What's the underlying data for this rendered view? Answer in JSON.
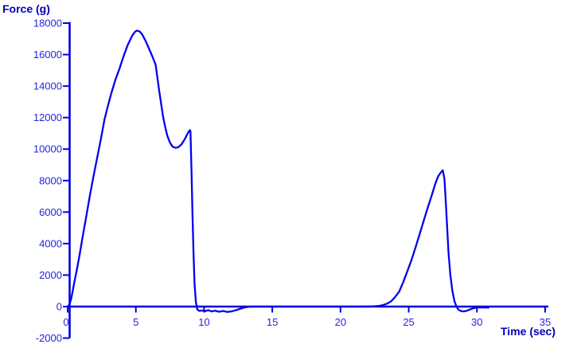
{
  "colors": {
    "background": "#ffffff",
    "curve": "#0202ee",
    "axis": "#0202e0",
    "tick_label": "#2424e2",
    "axis_title": "#0000b6"
  },
  "chart_data": {
    "type": "line",
    "title": "",
    "ylabel": "Force (g)",
    "xlabel": "Time (sec)",
    "xlim": [
      0,
      35
    ],
    "ylim": [
      -2000,
      18000
    ],
    "x_ticks": [
      0,
      5,
      10,
      15,
      20,
      25,
      30,
      35
    ],
    "y_ticks": [
      18000,
      16000,
      14000,
      12000,
      10000,
      8000,
      6000,
      4000,
      2000,
      0,
      -2000
    ],
    "grid": false,
    "legend": null,
    "series": [
      {
        "name": "force",
        "color": "#0202ee",
        "points": [
          [
            0,
            0
          ],
          [
            0.15,
            150
          ],
          [
            0.3,
            650
          ],
          [
            0.5,
            1600
          ],
          [
            0.7,
            2450
          ],
          [
            0.9,
            3400
          ],
          [
            1.1,
            4450
          ],
          [
            1.4,
            5900
          ],
          [
            1.65,
            7160
          ],
          [
            1.9,
            8300
          ],
          [
            2.2,
            9600
          ],
          [
            2.45,
            10700
          ],
          [
            2.7,
            11880
          ],
          [
            3.0,
            12900
          ],
          [
            3.2,
            13550
          ],
          [
            3.5,
            14400
          ],
          [
            3.8,
            15100
          ],
          [
            4.1,
            15900
          ],
          [
            4.4,
            16600
          ],
          [
            4.7,
            17150
          ],
          [
            4.9,
            17420
          ],
          [
            5.05,
            17520
          ],
          [
            5.25,
            17490
          ],
          [
            5.45,
            17300
          ],
          [
            5.7,
            16900
          ],
          [
            6.0,
            16300
          ],
          [
            6.2,
            15900
          ],
          [
            6.45,
            15350
          ],
          [
            6.7,
            13750
          ],
          [
            7.0,
            12030
          ],
          [
            7.15,
            11400
          ],
          [
            7.3,
            10870
          ],
          [
            7.5,
            10400
          ],
          [
            7.7,
            10150
          ],
          [
            7.9,
            10080
          ],
          [
            8.1,
            10110
          ],
          [
            8.35,
            10300
          ],
          [
            8.6,
            10650
          ],
          [
            8.8,
            11000
          ],
          [
            8.95,
            11200
          ],
          [
            9.0,
            11150
          ],
          [
            9.08,
            8500
          ],
          [
            9.15,
            5800
          ],
          [
            9.22,
            3500
          ],
          [
            9.3,
            1500
          ],
          [
            9.4,
            300
          ],
          [
            9.5,
            -180
          ],
          [
            9.65,
            -280
          ],
          [
            9.85,
            -250
          ],
          [
            10.05,
            -300
          ],
          [
            10.3,
            -230
          ],
          [
            10.55,
            -310
          ],
          [
            10.8,
            -260
          ],
          [
            11.1,
            -330
          ],
          [
            11.4,
            -280
          ],
          [
            11.7,
            -340
          ],
          [
            12.0,
            -310
          ],
          [
            12.3,
            -240
          ],
          [
            12.6,
            -150
          ],
          [
            12.9,
            -70
          ],
          [
            13.2,
            -20
          ],
          [
            13.5,
            0
          ],
          [
            14.5,
            0
          ],
          [
            15.5,
            0
          ],
          [
            16.5,
            0
          ],
          [
            17.5,
            0
          ],
          [
            18.5,
            0
          ],
          [
            19.5,
            0
          ],
          [
            20.5,
            0
          ],
          [
            21.5,
            0
          ],
          [
            22.4,
            10
          ],
          [
            22.8,
            40
          ],
          [
            23.1,
            90
          ],
          [
            23.4,
            180
          ],
          [
            23.7,
            330
          ],
          [
            24.0,
            600
          ],
          [
            24.3,
            950
          ],
          [
            24.6,
            1550
          ],
          [
            24.9,
            2250
          ],
          [
            25.2,
            2950
          ],
          [
            25.5,
            3750
          ],
          [
            25.8,
            4600
          ],
          [
            26.1,
            5450
          ],
          [
            26.4,
            6300
          ],
          [
            26.7,
            7100
          ],
          [
            26.95,
            7800
          ],
          [
            27.15,
            8250
          ],
          [
            27.35,
            8520
          ],
          [
            27.5,
            8650
          ],
          [
            27.62,
            8100
          ],
          [
            27.72,
            6600
          ],
          [
            27.82,
            5000
          ],
          [
            27.92,
            3400
          ],
          [
            28.05,
            2000
          ],
          [
            28.2,
            1000
          ],
          [
            28.35,
            350
          ],
          [
            28.5,
            0
          ],
          [
            28.65,
            -200
          ],
          [
            28.85,
            -290
          ],
          [
            29.05,
            -310
          ],
          [
            29.25,
            -270
          ],
          [
            29.5,
            -180
          ],
          [
            29.75,
            -100
          ],
          [
            30.0,
            -55
          ],
          [
            30.3,
            -55
          ],
          [
            30.6,
            -60
          ],
          [
            30.85,
            -60
          ]
        ]
      }
    ]
  }
}
